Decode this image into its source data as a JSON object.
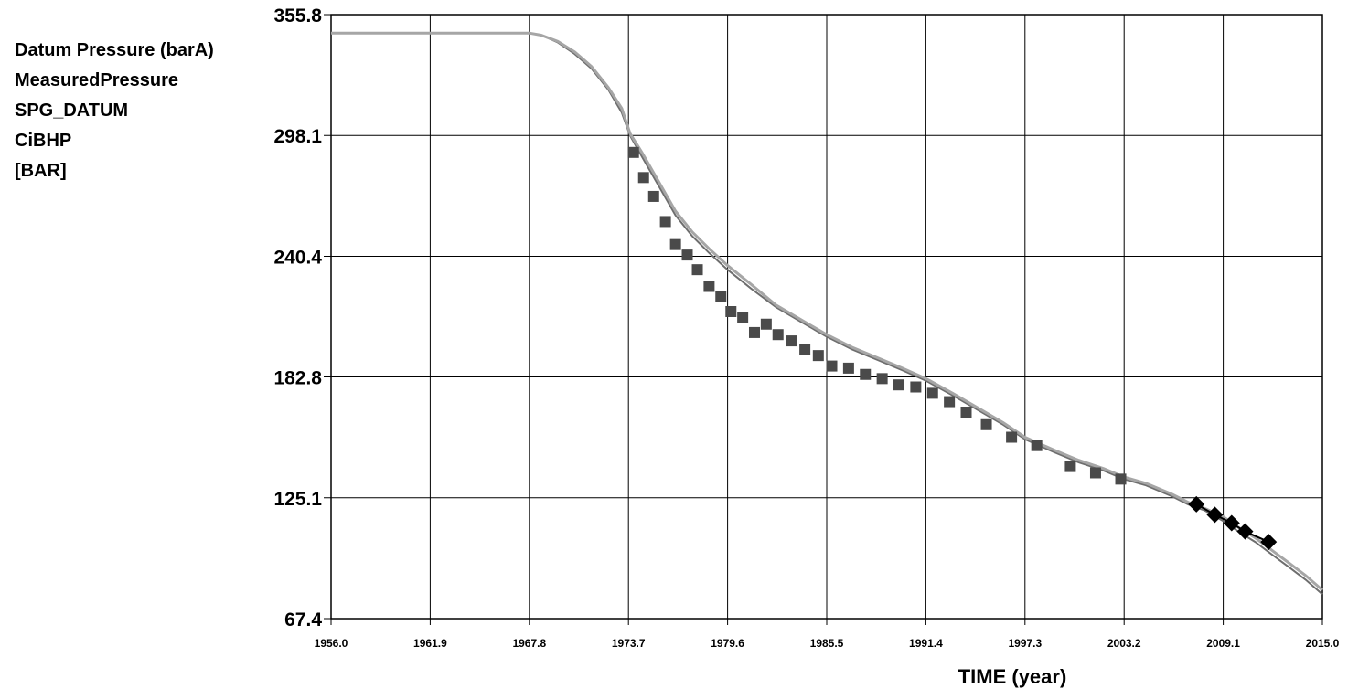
{
  "chart_data": {
    "type": "line",
    "title": "",
    "legend_lines": [
      "Datum Pressure (barA)",
      "MeasuredPressure",
      "SPG_DATUM",
      "CiBHP",
      "[BAR]"
    ],
    "legend_placement": "left",
    "xlabel": "TIME (year)",
    "ylabel": "",
    "xlim": [
      1956.0,
      2015.0
    ],
    "ylim": [
      67.4,
      355.8
    ],
    "x_ticks": [
      "1956.0",
      "1961.9",
      "1967.8",
      "1973.7",
      "1979.6",
      "1985.5",
      "1991.4",
      "1997.3",
      "2003.2",
      "2009.1",
      "2015.0"
    ],
    "y_ticks": [
      "67.4",
      "125.1",
      "182.8",
      "240.4",
      "298.1",
      "355.8"
    ],
    "grid": true,
    "colors": {
      "simulated": "#a6a6a6",
      "simulated_dark": "#6e6e6e",
      "measured": "#4a4a4a",
      "ciBHP": "#000000"
    },
    "series": [
      {
        "style": "line",
        "x": [
          1956.0,
          1962.0,
          1967.8,
          1968.5,
          1969.5,
          1970.5,
          1971.5,
          1972.5,
          1973.3,
          1973.8,
          1974.5,
          1975.5,
          1976.5,
          1977.5,
          1978.5,
          1979.6,
          1981.0,
          1982.5,
          1984.0,
          1985.5,
          1987.0,
          1988.5,
          1990.0,
          1991.4,
          1993.0,
          1994.5,
          1996.0,
          1997.3,
          1999.0,
          2000.5,
          2002.0,
          2003.2,
          2004.5,
          2006.0,
          2007.0,
          2008.0,
          2009.1,
          2010.0,
          2011.0,
          2012.0,
          2013.0,
          2014.0,
          2015.0
        ],
        "y": [
          347.0,
          347.0,
          347.0,
          346.0,
          343.0,
          338.0,
          331.0,
          321.0,
          311.0,
          299.0,
          290.0,
          276.0,
          262.0,
          252.0,
          244.0,
          236.0,
          227.0,
          217.0,
          210.0,
          203.0,
          197.0,
          192.0,
          187.0,
          182.0,
          175.0,
          168.0,
          161.0,
          154.0,
          148.0,
          143.0,
          139.0,
          135.0,
          132.0,
          127.0,
          123.0,
          120.0,
          116.0,
          111.0,
          106.0,
          100.0,
          94.0,
          88.0,
          81.0
        ]
      },
      {
        "style": "line",
        "x": [
          1956.0,
          1962.0,
          1967.8,
          1968.5,
          1969.5,
          1970.5,
          1971.5,
          1972.5,
          1973.3,
          1973.8,
          1974.5,
          1975.5,
          1976.5,
          1977.5,
          1978.5,
          1979.6,
          1981.0,
          1982.5,
          1984.0,
          1985.5,
          1987.0,
          1988.5,
          1990.0,
          1991.4,
          1993.0,
          1994.5,
          1996.0,
          1997.3,
          1999.0,
          2000.5,
          2002.0,
          2003.2,
          2004.5,
          2006.0,
          2007.0,
          2008.0,
          2009.1,
          2010.0,
          2011.0,
          2012.0,
          2013.0,
          2014.0,
          2015.0
        ],
        "y": [
          347.0,
          347.0,
          347.0,
          346.0,
          342.5,
          337.0,
          330.0,
          320.0,
          309.0,
          298.0,
          288.0,
          274.0,
          260.0,
          250.0,
          242.0,
          234.0,
          225.0,
          216.0,
          209.0,
          202.0,
          196.0,
          191.0,
          186.0,
          181.0,
          174.0,
          167.0,
          160.0,
          153.0,
          147.0,
          142.0,
          138.0,
          134.0,
          131.0,
          126.0,
          122.0,
          119.0,
          114.0,
          109.0,
          104.0,
          98.0,
          92.0,
          86.0,
          79.0
        ]
      },
      {
        "style": "square-markers",
        "x": [
          1974.0,
          1974.6,
          1975.2,
          1975.9,
          1976.5,
          1977.2,
          1977.8,
          1978.5,
          1979.2,
          1979.8,
          1980.5,
          1981.2,
          1981.9,
          1982.6,
          1983.4,
          1984.2,
          1985.0,
          1985.8,
          1986.8,
          1987.8,
          1988.8,
          1989.8,
          1990.8,
          1991.8,
          1992.8,
          1993.8,
          1995.0,
          1996.5,
          1998.0,
          2000.0,
          2001.5,
          2003.0
        ],
        "y": [
          290.0,
          278.0,
          269.0,
          257.0,
          246.0,
          241.0,
          234.0,
          226.0,
          221.0,
          214.0,
          211.0,
          204.0,
          208.0,
          203.0,
          200.0,
          196.0,
          193.0,
          188.0,
          187.0,
          184.0,
          182.0,
          179.0,
          178.0,
          175.0,
          171.0,
          166.0,
          160.0,
          154.0,
          150.0,
          140.0,
          137.0,
          134.0
        ]
      },
      {
        "style": "diamond-markers",
        "x": [
          2007.5,
          2008.6,
          2009.6,
          2010.4,
          2011.8
        ],
        "y": [
          122.0,
          117.0,
          113.0,
          109.0,
          104.0
        ]
      }
    ]
  }
}
